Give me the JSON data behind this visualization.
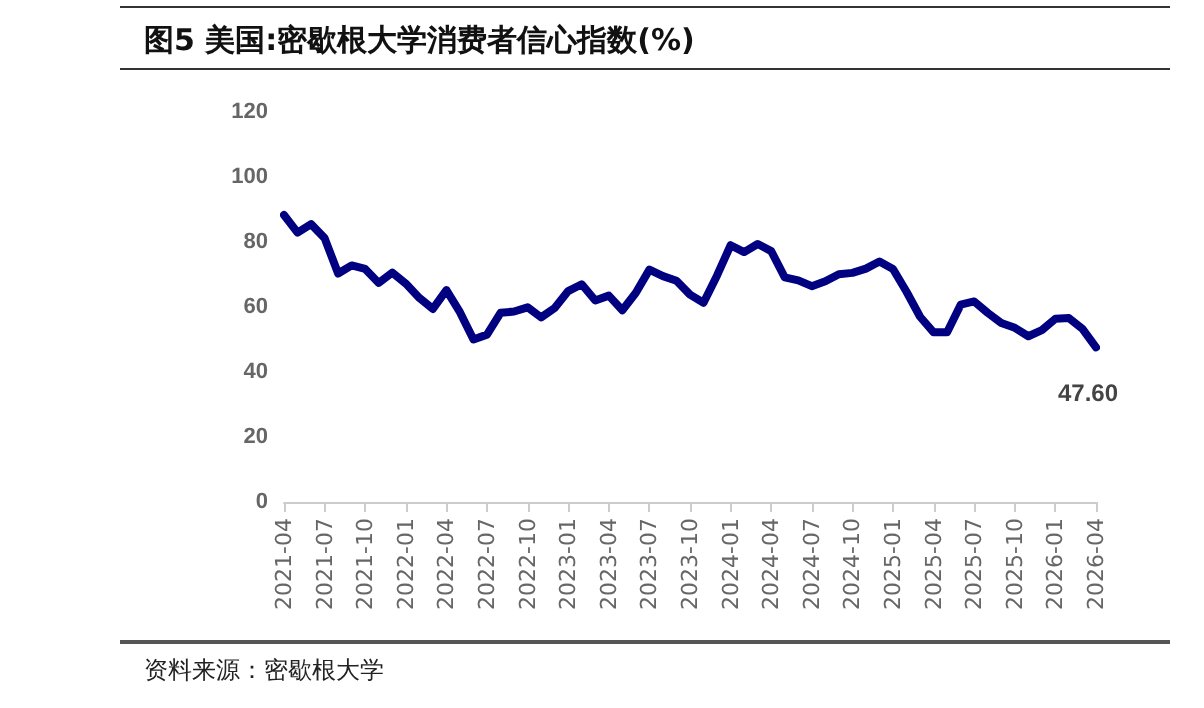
{
  "chart_data": {
    "type": "line",
    "title": "图5   美国:密歇根大学消费者信心指数(%)",
    "annotations": [
      "资料来源：密歇根大学"
    ],
    "categories": [
      "2021-04",
      null,
      null,
      "2021-07",
      null,
      null,
      "2021-10",
      null,
      null,
      "2022-01",
      null,
      null,
      "2022-04",
      null,
      null,
      "2022-07",
      null,
      null,
      "2022-10",
      null,
      null,
      "2023-01",
      null,
      null,
      "2023-04",
      null,
      null,
      "2023-07",
      null,
      null,
      "2023-10",
      null,
      null,
      "2024-01",
      null,
      null,
      "2024-04",
      null,
      null,
      "2024-07",
      null,
      null,
      "2024-10",
      null,
      null,
      "2025-01",
      null,
      null,
      "2025-04",
      null,
      null,
      "2025-07",
      null,
      null,
      "2025-10",
      null,
      null,
      "2026-01",
      null,
      null,
      "2026-04"
    ],
    "series": [
      {
        "color": "#000080",
        "values": [
          88.3,
          82.9,
          85.5,
          81.2,
          70.3,
          72.8,
          71.7,
          67.4,
          70.6,
          67.2,
          62.8,
          59.4,
          65.2,
          58.4,
          50.0,
          51.5,
          58.2,
          58.6,
          59.9,
          56.8,
          59.7,
          64.9,
          67.0,
          62.0,
          63.5,
          59.0,
          64.4,
          71.5,
          69.5,
          68.1,
          63.8,
          61.3,
          69.7,
          79.0,
          76.9,
          79.4,
          77.2,
          69.1,
          68.2,
          66.4,
          67.9,
          70.1,
          70.5,
          71.8,
          74.0,
          71.7,
          64.7,
          57.0,
          52.2,
          52.2,
          60.7,
          61.7,
          58.2,
          55.1,
          53.6,
          51.0,
          52.9,
          56.4,
          56.6,
          53.3,
          47.6
        ],
        "value_labels": [
          null,
          null,
          null,
          null,
          null,
          null,
          null,
          null,
          null,
          null,
          null,
          null,
          null,
          null,
          null,
          null,
          null,
          null,
          null,
          null,
          null,
          null,
          null,
          null,
          null,
          null,
          null,
          null,
          null,
          null,
          null,
          null,
          null,
          null,
          null,
          null,
          null,
          null,
          null,
          null,
          null,
          null,
          null,
          null,
          null,
          null,
          null,
          null,
          null,
          null,
          null,
          null,
          null,
          null,
          null,
          null,
          null,
          null,
          null,
          null,
          "47.60"
        ]
      }
    ],
    "ylim": [
      0,
      120
    ],
    "yticks": [
      0,
      20,
      40,
      60,
      80,
      100,
      120
    ],
    "grid": false,
    "marker": "none",
    "line_style": "solid"
  }
}
